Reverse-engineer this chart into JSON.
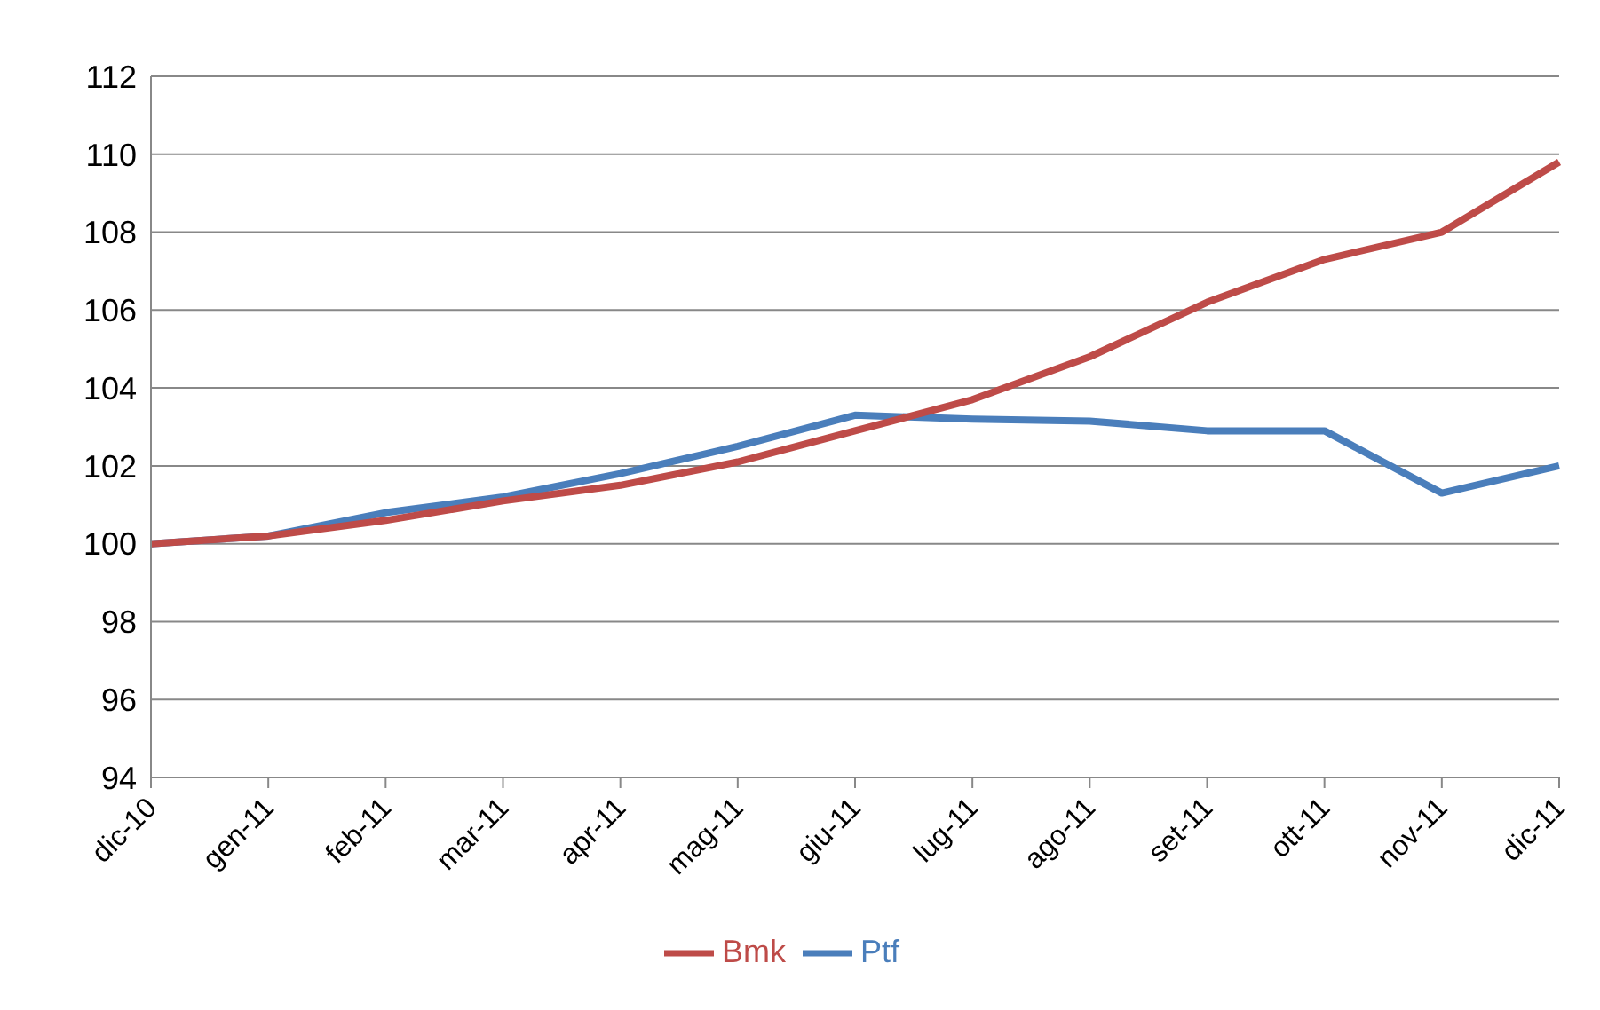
{
  "chart_data": {
    "type": "line",
    "categories": [
      "dic-10",
      "gen-11",
      "feb-11",
      "mar-11",
      "apr-11",
      "mag-11",
      "giu-11",
      "lug-11",
      "ago-11",
      "set-11",
      "ott-11",
      "nov-11",
      "dic-11"
    ],
    "series": [
      {
        "name": "Ptf",
        "color": "#4a7ebb",
        "values": [
          100,
          100.2,
          100.8,
          101.2,
          101.8,
          102.5,
          103.3,
          103.2,
          103.15,
          102.9,
          102.9,
          101.3,
          102.0
        ]
      },
      {
        "name": "Bmk",
        "color": "#be4b48",
        "values": [
          100,
          100.2,
          100.6,
          101.1,
          101.5,
          102.1,
          102.9,
          103.7,
          104.8,
          106.2,
          107.3,
          108.0,
          109.8
        ]
      }
    ],
    "ylim": [
      94,
      112
    ],
    "yticks": [
      94,
      96,
      98,
      100,
      102,
      104,
      106,
      108,
      110,
      112
    ],
    "grid": "y",
    "legend": "bottom",
    "marker": "none",
    "line_style": "solid"
  }
}
